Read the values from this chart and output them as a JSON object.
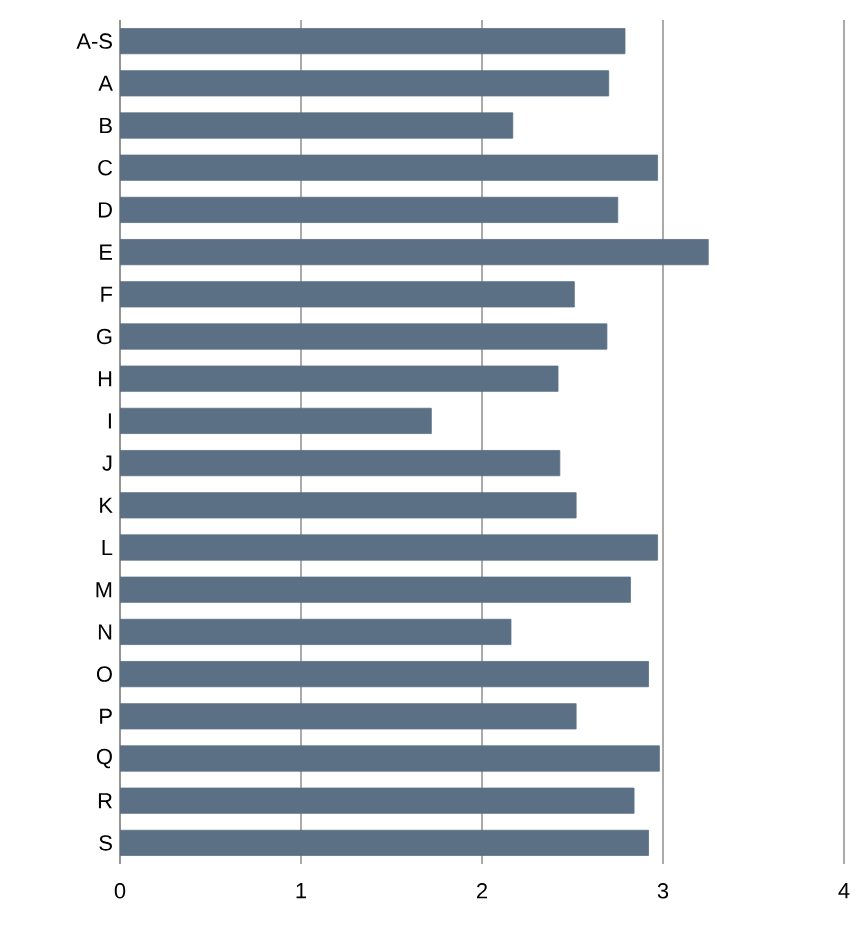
{
  "chart_data": {
    "type": "bar",
    "orientation": "horizontal",
    "categories": [
      "A-S",
      "A",
      "B",
      "C",
      "D",
      "E",
      "F",
      "G",
      "H",
      "I",
      "J",
      "K",
      "L",
      "M",
      "N",
      "O",
      "P",
      "Q",
      "R",
      "S"
    ],
    "values": [
      2.79,
      2.7,
      2.17,
      2.97,
      2.75,
      3.25,
      2.51,
      2.69,
      2.42,
      1.72,
      2.43,
      2.52,
      2.97,
      2.82,
      2.16,
      2.92,
      2.52,
      2.98,
      2.84,
      2.92
    ],
    "color": "#5b7085",
    "xlim": [
      0,
      4
    ],
    "xticks": [
      0,
      1,
      2,
      3,
      4
    ],
    "grid": "x"
  }
}
